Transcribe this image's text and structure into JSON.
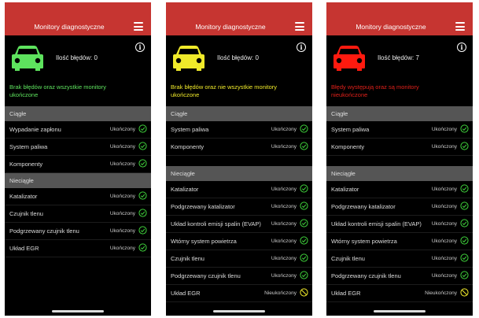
{
  "colors": {
    "header": "#c63531",
    "ok": "#3fd13b",
    "yellow": "#f0ea2a",
    "red": "#ff1a0f"
  },
  "screens": [
    {
      "title": "Monitory diagnostyczne",
      "errors_label": "Ilość błędów: 0",
      "car_color": "#5ee35e",
      "message": "Brak błędów oraz wszystkie monitory ukończone",
      "message_color": "#5ee35e",
      "dense": true,
      "sections": [
        {
          "label": "Ciągłe",
          "rows": [
            {
              "label": "Wypadanie zapłonu",
              "status": "Ukończony",
              "icon": "check"
            },
            {
              "label": "System paliwa",
              "status": "Ukończony",
              "icon": "check"
            },
            {
              "label": "Komponenty",
              "status": "Ukończony",
              "icon": "check"
            }
          ]
        },
        {
          "label": "Nieciągłe",
          "rows": [
            {
              "label": "Katalizator",
              "status": "Ukończony",
              "icon": "check"
            },
            {
              "label": "Czujnik tlenu",
              "status": "Ukończony",
              "icon": "check"
            },
            {
              "label": "Podgrzewany czujnik tlenu",
              "status": "Ukończony",
              "icon": "check"
            },
            {
              "label": "Układ EGR",
              "status": "Ukończony",
              "icon": "check"
            }
          ]
        }
      ]
    },
    {
      "title": "Monitory diagnostyczne",
      "errors_label": "Ilość błędów: 0",
      "car_color": "#f0ea2a",
      "message": "Brak błędów oraz nie wszystkie monitory ukończone",
      "message_color": "#f0ea2a",
      "dense": false,
      "sections": [
        {
          "label": "Ciągłe",
          "rows": [
            {
              "label": "System paliwa",
              "status": "Ukończony",
              "icon": "check"
            },
            {
              "label": "Komponenty",
              "status": "Ukończony",
              "icon": "check"
            }
          ]
        },
        {
          "label": "Nieciągłe",
          "rows": [
            {
              "label": "Katalizator",
              "status": "Ukończony",
              "icon": "check"
            },
            {
              "label": "Podgrzewany katalizator",
              "status": "Ukończony",
              "icon": "check"
            },
            {
              "label": "Układ kontroli emisji spalin (EVAP)",
              "status": "Ukończony",
              "icon": "check"
            },
            {
              "label": "Wtórny system powietrza",
              "status": "Ukończony",
              "icon": "check"
            },
            {
              "label": "Czujnik tlenu",
              "status": "Ukończony",
              "icon": "check"
            },
            {
              "label": "Podgrzewany czujnik tlenu",
              "status": "Ukończony",
              "icon": "check"
            },
            {
              "label": "Układ EGR",
              "status": "Nieukończony",
              "icon": "not-done"
            }
          ]
        }
      ]
    },
    {
      "title": "Monitory diagnostyczne",
      "errors_label": "Ilość błędów: 7",
      "car_color": "#ff1a0f",
      "message": "Błędy występują oraz są monitory nieukończone",
      "message_color": "#e0201a",
      "dense": false,
      "sections": [
        {
          "label": "Ciągłe",
          "rows": [
            {
              "label": "System paliwa",
              "status": "Ukończony",
              "icon": "check"
            },
            {
              "label": "Komponenty",
              "status": "Ukończony",
              "icon": "check"
            }
          ]
        },
        {
          "label": "Nieciągłe",
          "rows": [
            {
              "label": "Katalizator",
              "status": "Ukończony",
              "icon": "check"
            },
            {
              "label": "Podgrzewany katalizator",
              "status": "Ukończony",
              "icon": "check"
            },
            {
              "label": "Układ kontroli emisji spalin (EVAP)",
              "status": "Ukończony",
              "icon": "check"
            },
            {
              "label": "Wtórny system powietrza",
              "status": "Ukończony",
              "icon": "check"
            },
            {
              "label": "Czujnik tlenu",
              "status": "Ukończony",
              "icon": "check"
            },
            {
              "label": "Podgrzewany czujnik tlenu",
              "status": "Ukończony",
              "icon": "check"
            },
            {
              "label": "Układ EGR",
              "status": "Nieukończony",
              "icon": "not-done"
            }
          ]
        }
      ]
    }
  ]
}
